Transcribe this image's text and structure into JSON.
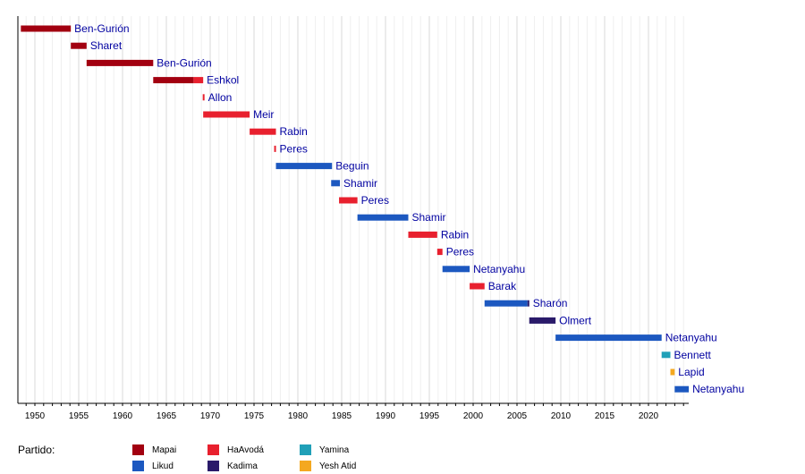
{
  "chart_data": {
    "type": "timeline",
    "title": "",
    "xlim": [
      1948,
      2025
    ],
    "xticks": [
      "1950",
      "1955",
      "1960",
      "1965",
      "1970",
      "1975",
      "1980",
      "1985",
      "1990",
      "1995",
      "2000",
      "2005",
      "2010",
      "2015",
      "2020"
    ],
    "parties": {
      "Mapai": "#a20010",
      "HaAvodá": "#e8202e",
      "Yamina": "#20a0b8",
      "Likud": "#1c58c0",
      "Kadima": "#2a1a6a",
      "Yesh Atid": "#f4a820"
    },
    "rows": [
      {
        "name": "Ben-Gurión",
        "segments": [
          {
            "party": "Mapai",
            "start": 1948.4,
            "end": 1954.1
          }
        ]
      },
      {
        "name": "Sharet",
        "segments": [
          {
            "party": "Mapai",
            "start": 1954.1,
            "end": 1955.9
          }
        ]
      },
      {
        "name": "Ben-Gurión",
        "segments": [
          {
            "party": "Mapai",
            "start": 1955.9,
            "end": 1963.5
          }
        ]
      },
      {
        "name": "Eshkol",
        "segments": [
          {
            "party": "Mapai",
            "start": 1963.5,
            "end": 1968.1
          },
          {
            "party": "HaAvodá",
            "start": 1968.1,
            "end": 1969.2
          }
        ]
      },
      {
        "name": "Allon",
        "segments": [
          {
            "party": "HaAvodá",
            "start": 1969.15,
            "end": 1969.3
          }
        ]
      },
      {
        "name": "Meir",
        "segments": [
          {
            "party": "HaAvodá",
            "start": 1969.2,
            "end": 1974.5
          }
        ]
      },
      {
        "name": "Rabin",
        "segments": [
          {
            "party": "HaAvodá",
            "start": 1974.5,
            "end": 1977.5
          }
        ]
      },
      {
        "name": "Peres",
        "segments": [
          {
            "party": "HaAvodá",
            "start": 1977.3,
            "end": 1977.5
          }
        ]
      },
      {
        "name": "Beguin",
        "segments": [
          {
            "party": "Likud",
            "start": 1977.5,
            "end": 1983.9
          }
        ]
      },
      {
        "name": "Shamir",
        "segments": [
          {
            "party": "Likud",
            "start": 1983.8,
            "end": 1984.8
          }
        ]
      },
      {
        "name": "Peres",
        "segments": [
          {
            "party": "HaAvodá",
            "start": 1984.7,
            "end": 1986.8
          }
        ]
      },
      {
        "name": "Shamir",
        "segments": [
          {
            "party": "Likud",
            "start": 1986.8,
            "end": 1992.6
          }
        ]
      },
      {
        "name": "Rabin",
        "segments": [
          {
            "party": "HaAvodá",
            "start": 1992.6,
            "end": 1995.9
          }
        ]
      },
      {
        "name": "Peres",
        "segments": [
          {
            "party": "HaAvodá",
            "start": 1995.9,
            "end": 1996.5
          }
        ]
      },
      {
        "name": "Netanyahu",
        "segments": [
          {
            "party": "Likud",
            "start": 1996.5,
            "end": 1999.6
          }
        ]
      },
      {
        "name": "Barak",
        "segments": [
          {
            "party": "HaAvodá",
            "start": 1999.6,
            "end": 2001.3
          }
        ]
      },
      {
        "name": "Sharón",
        "segments": [
          {
            "party": "Likud",
            "start": 2001.3,
            "end": 2006.2
          },
          {
            "party": "Kadima",
            "start": 2006.2,
            "end": 2006.4
          }
        ]
      },
      {
        "name": "Olmert",
        "segments": [
          {
            "party": "Kadima",
            "start": 2006.4,
            "end": 2009.4
          }
        ]
      },
      {
        "name": "Netanyahu",
        "segments": [
          {
            "party": "Likud",
            "start": 2009.4,
            "end": 2021.5
          }
        ]
      },
      {
        "name": "Bennett",
        "segments": [
          {
            "party": "Yamina",
            "start": 2021.5,
            "end": 2022.5
          }
        ]
      },
      {
        "name": "Lapid",
        "segments": [
          {
            "party": "Yesh Atid",
            "start": 2022.5,
            "end": 2022.99
          }
        ]
      },
      {
        "name": "Netanyahu",
        "segments": [
          {
            "party": "Likud",
            "start": 2022.99,
            "end": 2024.6
          }
        ]
      }
    ],
    "legend": {
      "title": "Partido:",
      "placement": "bottom",
      "items": [
        "Mapai",
        "HaAvodá",
        "Yamina",
        "Likud",
        "Kadima",
        "Yesh Atid"
      ]
    }
  }
}
